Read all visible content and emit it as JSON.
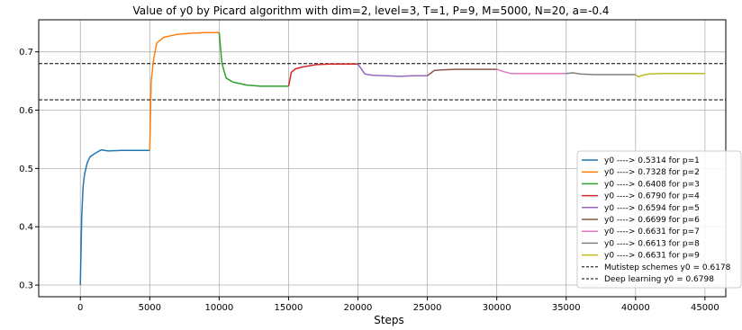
{
  "chart_data": {
    "type": "line",
    "title": "Value of y0 by Picard algorithm with dim=2, level=3, T=1, P=9, M=5000, N=20, a=-0.4",
    "xlabel": "Steps",
    "ylabel": "",
    "xlim": [
      -3000,
      46500
    ],
    "ylim": [
      0.28,
      0.755
    ],
    "x_ticks": [
      0,
      5000,
      10000,
      15000,
      20000,
      25000,
      30000,
      35000,
      40000,
      45000
    ],
    "y_ticks": [
      0.3,
      0.4,
      0.5,
      0.6,
      0.7
    ],
    "grid": true,
    "legend_position": "lower right",
    "series": [
      {
        "name": "y0 ----> 0.5314 for p=1",
        "color": "#1f77b4",
        "x": [
          0,
          100,
          200,
          300,
          500,
          700,
          1000,
          1500,
          2000,
          3000,
          4000,
          5000
        ],
        "y": [
          0.3,
          0.42,
          0.47,
          0.49,
          0.51,
          0.52,
          0.525,
          0.532,
          0.53,
          0.531,
          0.531,
          0.531
        ]
      },
      {
        "name": "y0 ----> 0.7328 for p=2",
        "color": "#ff7f0e",
        "x": [
          5000,
          5100,
          5300,
          5500,
          6000,
          7000,
          8000,
          9000,
          10000
        ],
        "y": [
          0.531,
          0.65,
          0.69,
          0.715,
          0.725,
          0.73,
          0.732,
          0.733,
          0.733
        ]
      },
      {
        "name": "y0 ----> 0.6408 for p=3",
        "color": "#2ca02c",
        "x": [
          10000,
          10200,
          10500,
          11000,
          12000,
          13000,
          14000,
          15000
        ],
        "y": [
          0.733,
          0.68,
          0.655,
          0.648,
          0.643,
          0.641,
          0.641,
          0.641
        ]
      },
      {
        "name": "y0 ----> 0.6790 for p=4",
        "color": "#d62728",
        "x": [
          15000,
          15200,
          15500,
          16000,
          17000,
          18000,
          19000,
          20000
        ],
        "y": [
          0.641,
          0.665,
          0.671,
          0.674,
          0.678,
          0.679,
          0.679,
          0.679
        ]
      },
      {
        "name": "y0 ----> 0.6594 for p=5",
        "color": "#9467bd",
        "x": [
          20000,
          20500,
          21000,
          22000,
          23000,
          24000,
          25000
        ],
        "y": [
          0.679,
          0.662,
          0.66,
          0.659,
          0.658,
          0.659,
          0.659
        ]
      },
      {
        "name": "y0 ----> 0.6699 for p=6",
        "color": "#8c564b",
        "x": [
          25000,
          25500,
          26000,
          27000,
          28000,
          29000,
          30000
        ],
        "y": [
          0.659,
          0.668,
          0.669,
          0.67,
          0.67,
          0.67,
          0.67
        ]
      },
      {
        "name": "y0 ----> 0.6631 for p=7",
        "color": "#e377c2",
        "x": [
          30000,
          30500,
          31000,
          32000,
          33000,
          34000,
          35000
        ],
        "y": [
          0.67,
          0.666,
          0.663,
          0.663,
          0.663,
          0.663,
          0.663
        ]
      },
      {
        "name": "y0 ----> 0.6613 for p=8",
        "color": "#7f7f7f",
        "x": [
          35000,
          35500,
          36000,
          37000,
          38000,
          39000,
          40000
        ],
        "y": [
          0.663,
          0.664,
          0.662,
          0.661,
          0.661,
          0.661,
          0.661
        ]
      },
      {
        "name": "y0 ----> 0.6631 for p=9",
        "color": "#bcbd22",
        "x": [
          40000,
          40200,
          40500,
          41000,
          42000,
          43000,
          44000,
          45000
        ],
        "y": [
          0.661,
          0.657,
          0.66,
          0.662,
          0.663,
          0.663,
          0.663,
          0.663
        ]
      }
    ],
    "reference_lines": [
      {
        "name": "Mutistep schemes y0 = 0.6178",
        "y": 0.6178,
        "color": "#000000",
        "style": "dashed"
      },
      {
        "name": "Deep learning y0 = 0.6798",
        "y": 0.6798,
        "color": "#000000",
        "style": "dashed"
      }
    ]
  }
}
